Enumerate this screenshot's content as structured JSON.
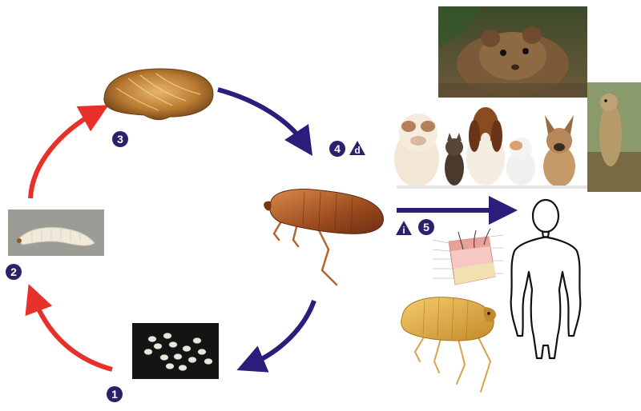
{
  "stages": [
    {
      "id": "eggs",
      "number": "1"
    },
    {
      "id": "larva",
      "number": "2"
    },
    {
      "id": "pupa",
      "number": "3"
    },
    {
      "id": "adult",
      "number": "4"
    },
    {
      "id": "human",
      "number": "5"
    }
  ],
  "symbols": {
    "diagnostic": "d",
    "infective": "i"
  },
  "colors": {
    "badge": "#2e1f6b",
    "arrow_blue": "#2b1d7a",
    "arrow_red": "#e8302a"
  }
}
